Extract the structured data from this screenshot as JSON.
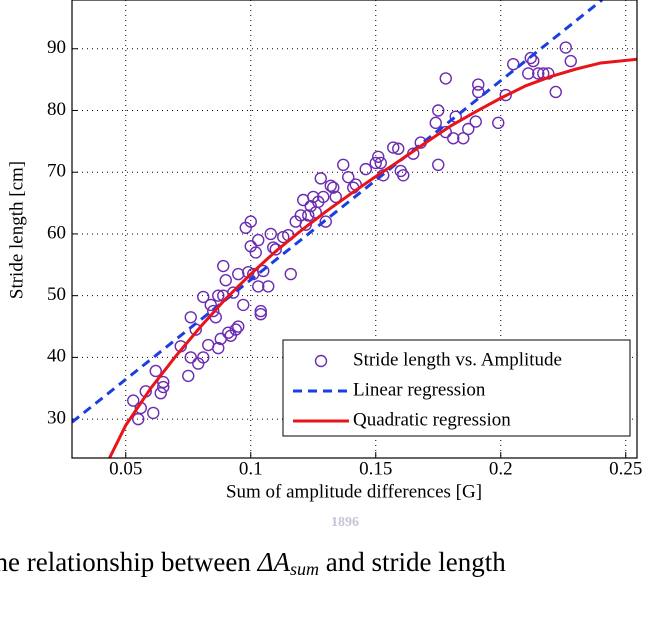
{
  "chart_data": {
    "type": "scatter",
    "xlabel": "Sum of amplitude differences [G]",
    "ylabel": "Stride length [cm]",
    "xlim": [
      0.0285,
      0.2545
    ],
    "ylim": [
      23.7,
      97.9
    ],
    "xticks": [
      0.05,
      0.1,
      0.15,
      0.2,
      0.25
    ],
    "yticks": [
      30,
      40,
      50,
      60,
      70,
      80,
      90
    ],
    "grid": true,
    "legend": "lower right",
    "caption": [
      "The relationship between ",
      "ΔA",
      "sum",
      " and stride length"
    ],
    "watermark": "1896",
    "series": [
      {
        "name": "Stride length vs. Amplitude",
        "type": "scatter",
        "color": "#6a2cb0",
        "x": [
          0.053,
          0.055,
          0.056,
          0.058,
          0.061,
          0.062,
          0.064,
          0.065,
          0.065,
          0.072,
          0.075,
          0.076,
          0.076,
          0.078,
          0.079,
          0.081,
          0.081,
          0.083,
          0.084,
          0.085,
          0.086,
          0.087,
          0.087,
          0.088,
          0.089,
          0.089,
          0.09,
          0.091,
          0.092,
          0.093,
          0.094,
          0.095,
          0.095,
          0.097,
          0.098,
          0.099,
          0.1,
          0.1,
          0.101,
          0.102,
          0.103,
          0.103,
          0.104,
          0.104,
          0.105,
          0.107,
          0.108,
          0.109,
          0.11,
          0.113,
          0.115,
          0.116,
          0.118,
          0.12,
          0.121,
          0.122,
          0.123,
          0.124,
          0.125,
          0.126,
          0.127,
          0.128,
          0.129,
          0.13,
          0.132,
          0.133,
          0.134,
          0.137,
          0.139,
          0.141,
          0.142,
          0.146,
          0.15,
          0.151,
          0.152,
          0.153,
          0.157,
          0.159,
          0.16,
          0.161,
          0.165,
          0.168,
          0.174,
          0.175,
          0.175,
          0.178,
          0.178,
          0.181,
          0.182,
          0.185,
          0.187,
          0.19,
          0.191,
          0.191,
          0.199,
          0.202,
          0.205,
          0.211,
          0.212,
          0.213,
          0.215,
          0.217,
          0.219,
          0.222,
          0.226,
          0.228
        ],
        "values": [
          33,
          30,
          31.8,
          34.5,
          31,
          37.8,
          34.2,
          36,
          35.2,
          41.8,
          37,
          40,
          46.5,
          44.5,
          39,
          49.8,
          40,
          42,
          48.5,
          47.5,
          46.5,
          50,
          41.5,
          43,
          50,
          54.8,
          52.5,
          44,
          43.5,
          50.5,
          44.5,
          53.5,
          45,
          48.5,
          61,
          53.8,
          62,
          58,
          53.5,
          57,
          59,
          51.5,
          47.5,
          47,
          54,
          51.5,
          60,
          57.8,
          57.5,
          59.5,
          59.8,
          53.5,
          62,
          63,
          65.5,
          61.5,
          63,
          64.5,
          66,
          63.5,
          65.2,
          69,
          66,
          62,
          67.8,
          67.5,
          66,
          71.2,
          69.2,
          67.5,
          68,
          70.5,
          71.5,
          72.5,
          71.5,
          69.5,
          74,
          73.8,
          70.2,
          69.5,
          73,
          74.8,
          78,
          80,
          71.2,
          85.2,
          76.5,
          75.5,
          79,
          75.5,
          77,
          78.2,
          84.2,
          83,
          78,
          82.5,
          87.5,
          86,
          88.5,
          88,
          86,
          86,
          86,
          83,
          90.2,
          88
        ]
      },
      {
        "name": "Linear regression",
        "type": "line",
        "dash": true,
        "color": "#1a3ee0",
        "x": [
          0.0285,
          0.2405
        ],
        "values": [
          29.5,
          97.9
        ]
      },
      {
        "name": "Quadratic regression",
        "type": "line",
        "dash": false,
        "color": "#e8141a",
        "x": [
          0.0435,
          0.05,
          0.06,
          0.07,
          0.08,
          0.09,
          0.1,
          0.11,
          0.12,
          0.13,
          0.14,
          0.15,
          0.16,
          0.17,
          0.18,
          0.19,
          0.2,
          0.21,
          0.22,
          0.23,
          0.24,
          0.2545
        ],
        "values": [
          23.7,
          29,
          35,
          40.2,
          45,
          49.5,
          53.5,
          57.2,
          60.5,
          63.6,
          66.5,
          69.3,
          72,
          74.8,
          77.5,
          79.8,
          82,
          84,
          85.5,
          86.7,
          87.7,
          88.3
        ]
      }
    ]
  }
}
